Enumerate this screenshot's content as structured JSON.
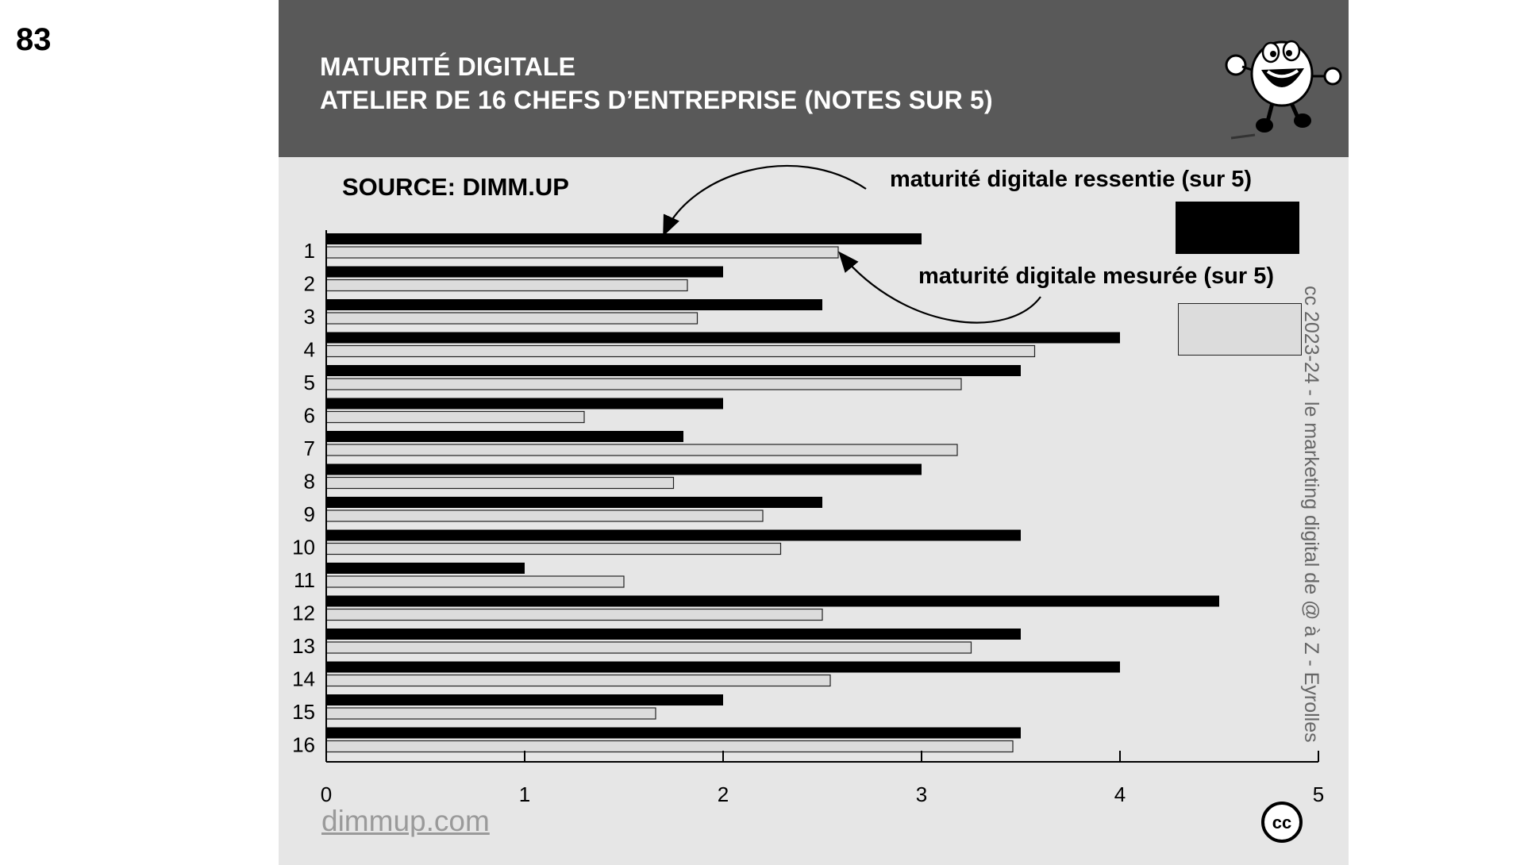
{
  "slide_number": "83",
  "header": {
    "title_line1": "MATURITÉ DIGITALE",
    "title_line2": "ATELIER DE 16 CHEFS D’ENTREPRISE (NOTES SUR 5)"
  },
  "source": "SOURCE: DIMM.UP",
  "legend": {
    "ressentie": "maturité digitale ressentie (sur 5)",
    "mesuree": "maturité digitale mesurée (sur 5)"
  },
  "copyright": "cc 2023-24  - le marketing digital de @ à Z - Eyrolles",
  "site": "dimmup.com",
  "cc_badge": "cc",
  "colors": {
    "ressentie": "#000000",
    "mesuree": "#dcdcdc",
    "header_bg": "#595959",
    "panel_bg": "#e6e6e6"
  },
  "chart_data": {
    "type": "bar",
    "orientation": "horizontal",
    "categories": [
      "1",
      "2",
      "3",
      "4",
      "5",
      "6",
      "7",
      "8",
      "9",
      "10",
      "11",
      "12",
      "13",
      "14",
      "15",
      "16"
    ],
    "series": [
      {
        "name": "maturité digitale ressentie (sur 5)",
        "values": [
          3,
          2,
          2.5,
          4,
          3.5,
          2,
          1.8,
          3,
          2.5,
          3.5,
          1,
          4.5,
          3.5,
          4,
          2,
          3.5
        ]
      },
      {
        "name": "maturité digitale mesurée (sur 5)",
        "values": [
          2.58,
          1.82,
          1.87,
          3.57,
          3.2,
          1.3,
          3.18,
          1.75,
          2.2,
          2.29,
          1.5,
          2.5,
          3.25,
          2.54,
          1.66,
          3.46
        ]
      }
    ],
    "xlim": [
      0,
      5
    ],
    "xticks": [
      "0",
      "1",
      "2",
      "3",
      "4",
      "5"
    ],
    "grid": false,
    "legend_position": "top-right"
  }
}
